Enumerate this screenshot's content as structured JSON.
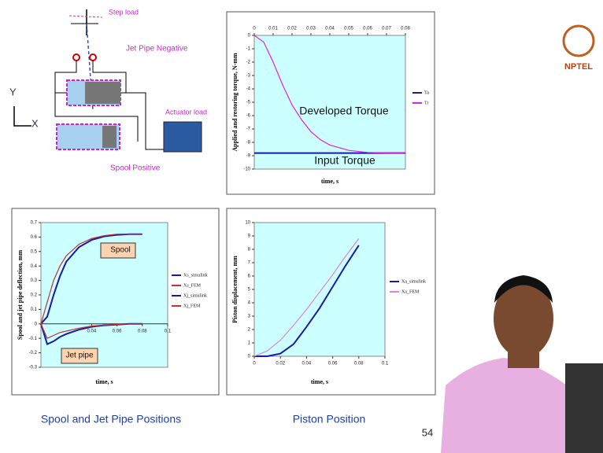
{
  "slide": {
    "step_load": "Step load",
    "jet_pipe_negative": "Jet Pipe Negative",
    "y_label": "Y",
    "x_label": "X",
    "actuator_load": "Actuator load",
    "spool_positive": "Spool Positive",
    "caption_left": "Spool and Jet Pipe Positions",
    "caption_right": "Piston Position",
    "page_number": "54",
    "logo": "NPTEL"
  },
  "chart_data": [
    {
      "type": "line",
      "x_label": "time, s",
      "y_label": "Applied and restoring torque, N-mm",
      "x": [
        0,
        0.005,
        0.01,
        0.015,
        0.02,
        0.025,
        0.03,
        0.035,
        0.04,
        0.05,
        0.06,
        0.07,
        0.08
      ],
      "series": [
        {
          "name": "Ta",
          "color": "#1a1aa8",
          "values": [
            -8.8,
            -8.8,
            -8.8,
            -8.8,
            -8.8,
            -8.8,
            -8.8,
            -8.8,
            -8.8,
            -8.8,
            -8.8,
            -8.8,
            -8.8
          ]
        },
        {
          "name": "Tr",
          "color": "#e020e0",
          "values": [
            0,
            -0.5,
            -2,
            -3.7,
            -5.2,
            -6.3,
            -7.2,
            -7.8,
            -8.2,
            -8.6,
            -8.75,
            -8.8,
            -8.8
          ]
        }
      ],
      "xlim": [
        0,
        0.08
      ],
      "xticks": [
        0,
        0.01,
        0.02,
        0.03,
        0.04,
        0.05,
        0.06,
        0.07,
        0.08
      ],
      "ylim": [
        -10,
        0
      ],
      "yticks": [
        0,
        -1,
        -2,
        -3,
        -4,
        -5,
        -6,
        -7,
        -8,
        -9,
        -10
      ],
      "annotations": [
        "Developed Torque",
        "Input Torque"
      ]
    },
    {
      "type": "line",
      "x_label": "time, s",
      "y_label": "Spool and jet pipe deflection, mm",
      "x": [
        0,
        0.005,
        0.01,
        0.015,
        0.02,
        0.03,
        0.04,
        0.05,
        0.06,
        0.07,
        0.08
      ],
      "series": [
        {
          "name": "Xs_simulink",
          "color": "#1a1aa8",
          "values": [
            0,
            0.05,
            0.2,
            0.33,
            0.43,
            0.53,
            0.58,
            0.605,
            0.615,
            0.62,
            0.62
          ]
        },
        {
          "name": "Xs_FEM",
          "color": "#c83030",
          "values": [
            0,
            0.15,
            0.3,
            0.4,
            0.47,
            0.55,
            0.59,
            0.61,
            0.62,
            0.62,
            0.62
          ]
        },
        {
          "name": "Xj_simulink",
          "color": "#1a1aa8",
          "values": [
            0,
            -0.14,
            -0.12,
            -0.09,
            -0.07,
            -0.04,
            -0.02,
            -0.01,
            -0.005,
            0,
            0
          ]
        },
        {
          "name": "Xj_FEM",
          "color": "#c83030",
          "values": [
            0,
            -0.1,
            -0.08,
            -0.06,
            -0.05,
            -0.03,
            -0.015,
            -0.008,
            -0.003,
            0,
            0
          ]
        }
      ],
      "xlim": [
        0,
        0.1
      ],
      "xticks": [
        0.04,
        0.06,
        0.08,
        0.1
      ],
      "ylim": [
        -0.3,
        0.7
      ],
      "yticks": [
        0.7,
        0.6,
        0.5,
        0.4,
        0.3,
        0.2,
        0.1,
        0,
        -0.1,
        -0.2,
        -0.3
      ],
      "annotations": [
        "Spool",
        "Jet pipe"
      ]
    },
    {
      "type": "line",
      "x_label": "time, s",
      "y_label": "Piston displacement, mm",
      "x": [
        0,
        0.01,
        0.02,
        0.03,
        0.04,
        0.05,
        0.06,
        0.07,
        0.08
      ],
      "series": [
        {
          "name": "Xa_simulink",
          "color": "#1a1aa8",
          "values": [
            0,
            0,
            0.2,
            0.9,
            2.2,
            3.6,
            5.2,
            6.8,
            8.3
          ]
        },
        {
          "name": "Xa_FEM",
          "color": "#e080e0",
          "values": [
            0,
            0.4,
            1.2,
            2.3,
            3.5,
            4.8,
            6.1,
            7.5,
            8.8
          ]
        }
      ],
      "xlim": [
        0,
        0.1
      ],
      "xticks": [
        0,
        0.02,
        0.04,
        0.06,
        0.08,
        0.1
      ],
      "ylim": [
        0,
        10
      ],
      "yticks": [
        0,
        1,
        2,
        3,
        4,
        5,
        6,
        7,
        8,
        9,
        10
      ]
    }
  ]
}
